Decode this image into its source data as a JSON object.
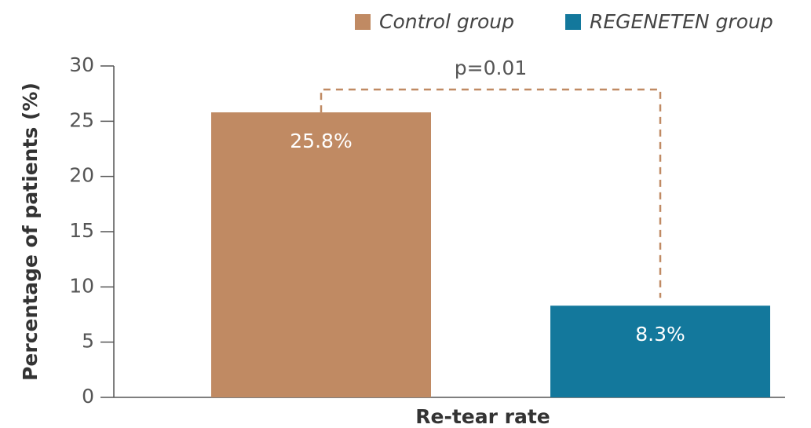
{
  "chart_data": {
    "type": "bar",
    "categories": [
      "Re-tear rate"
    ],
    "series": [
      {
        "name": "Control group",
        "color": "#c08a63",
        "values": [
          25.8
        ],
        "value_labels": [
          "25.8%"
        ]
      },
      {
        "name": "REGENETEN group",
        "color": "#13789c",
        "values": [
          8.3
        ],
        "value_labels": [
          "8.3%"
        ]
      }
    ],
    "y_label": "Percentage of patients (%)",
    "annotation": "p=0.01",
    "ylim": [
      0,
      30
    ],
    "yticks": [
      0,
      5,
      10,
      15,
      20,
      25,
      30
    ],
    "legend": "top-right"
  }
}
